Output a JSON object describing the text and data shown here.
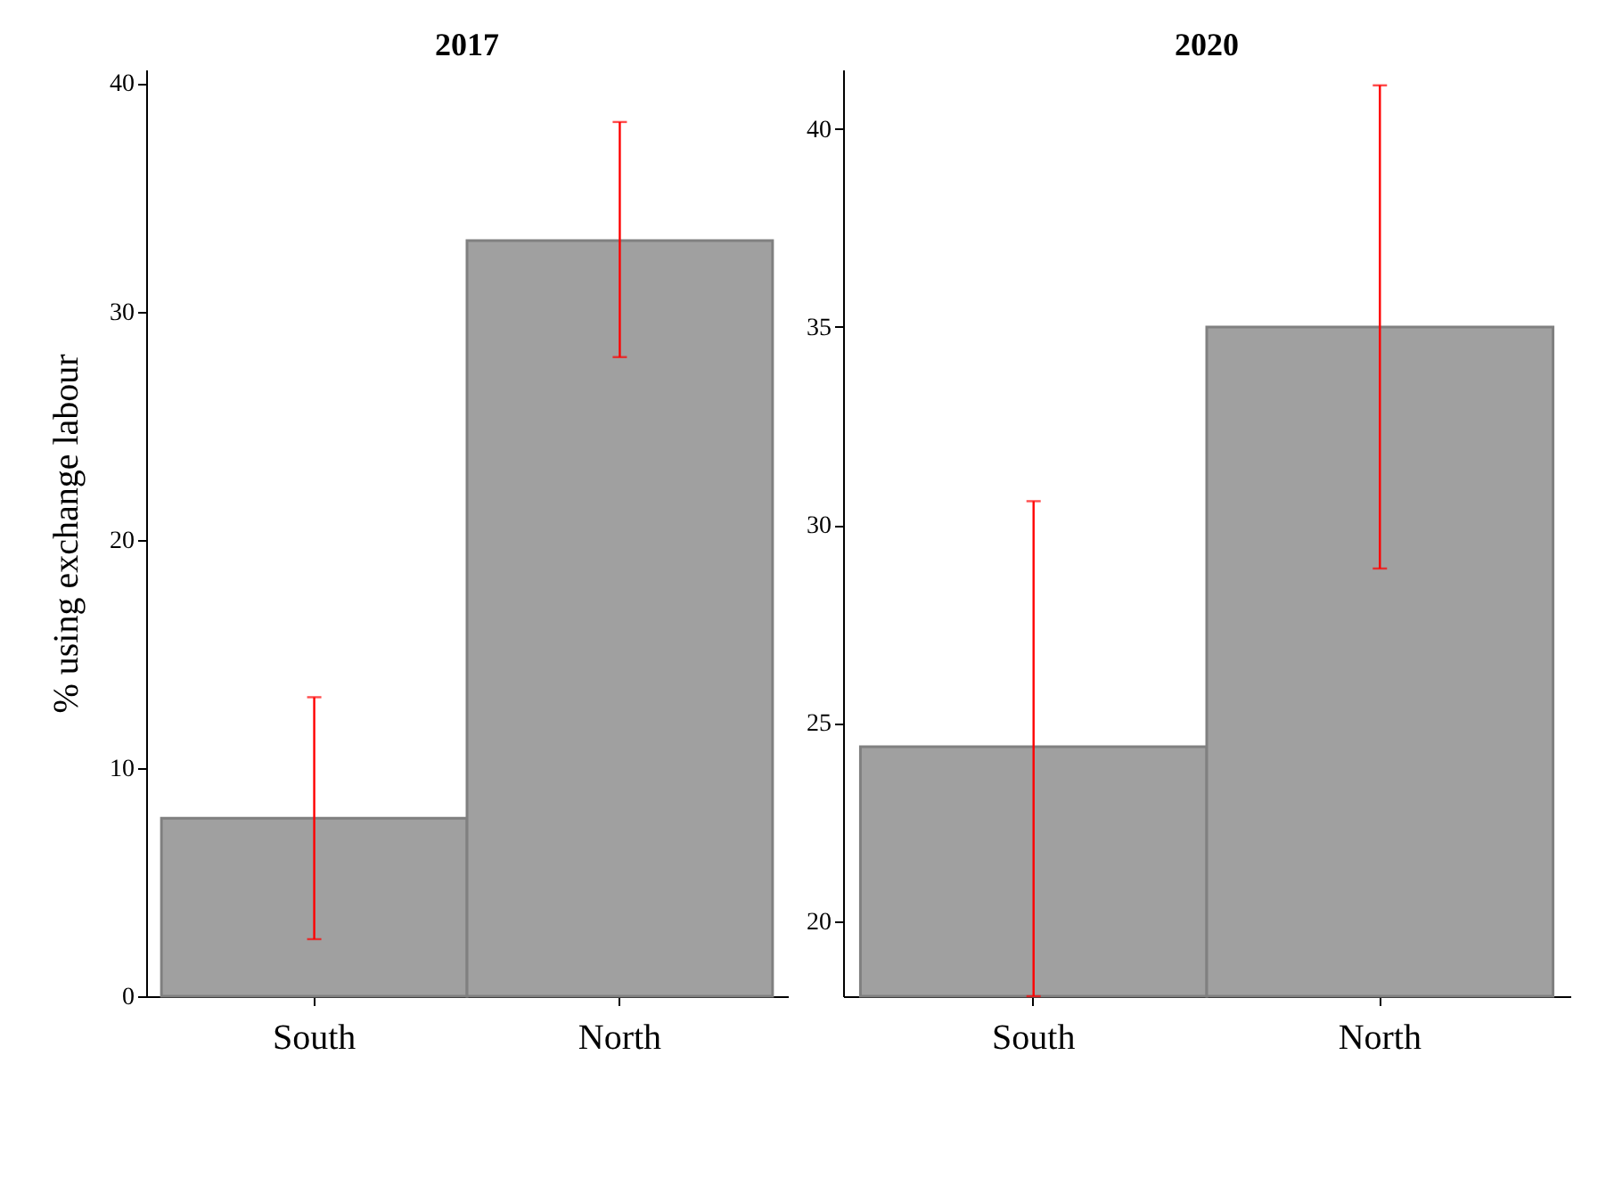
{
  "chart_data": [
    {
      "type": "bar",
      "title": "2017",
      "ylabel": "% using exchange labour",
      "categories": [
        "South",
        "North"
      ],
      "values": [
        7.8,
        33.1
      ],
      "errors": [
        [
          2.5,
          13.1
        ],
        [
          28.0,
          38.3
        ]
      ],
      "color": "#a0a0a0",
      "ylim": [
        0,
        40.6
      ],
      "yticks": [
        0,
        10,
        20,
        30,
        40
      ],
      "grid": false
    },
    {
      "type": "bar",
      "title": "2020",
      "categories": [
        "South",
        "North"
      ],
      "values": [
        24.4,
        35.0
      ],
      "errors": [
        [
          18.1,
          30.6
        ],
        [
          28.9,
          41.1
        ]
      ],
      "color": "#a0a0a0",
      "ylim": [
        18.1,
        41.5
      ],
      "yticks": [
        20,
        25,
        30,
        35,
        40
      ],
      "grid": false
    }
  ]
}
